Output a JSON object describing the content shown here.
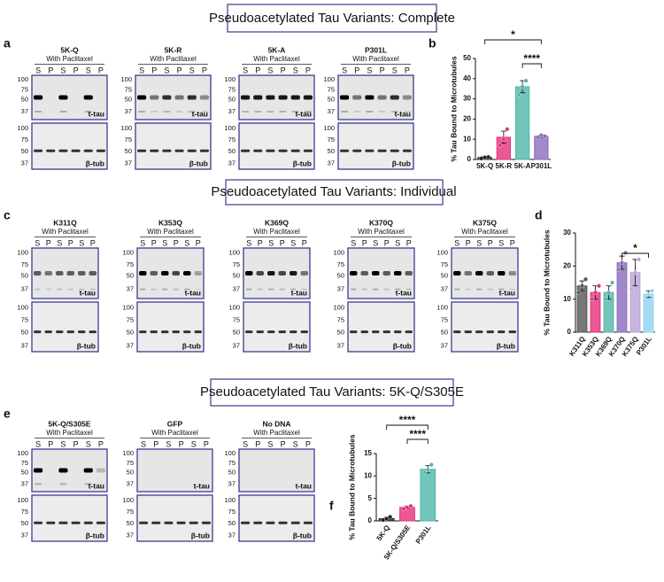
{
  "sections": [
    "Pseudoacetylated Tau Variants: Complete",
    "Pseudoacetylated Tau Variants: Individual",
    "Pseudoacetylated Tau Variants: 5K-Q/S305E"
  ],
  "panels": [
    "a",
    "b",
    "c",
    "d",
    "e",
    "f"
  ],
  "blots": [
    {
      "title": "5K-Q",
      "subtitle": "With Paclitaxel",
      "lanes": [
        "S",
        "P",
        "S",
        "P",
        "S",
        "P"
      ],
      "markers_top": [
        100,
        75,
        50,
        37
      ],
      "markers_bottom": [
        100,
        75,
        50,
        37
      ],
      "label_top": "t-tau",
      "label_bottom": "β-tub"
    },
    {
      "title": "5K-R",
      "subtitle": "With Paclitaxel",
      "lanes": [
        "S",
        "P",
        "S",
        "P",
        "S",
        "P"
      ],
      "markers_top": [
        100,
        75,
        50,
        37
      ],
      "markers_bottom": [
        100,
        75,
        50,
        37
      ],
      "label_top": "t-tau",
      "label_bottom": "β-tub"
    },
    {
      "title": "5K-A",
      "subtitle": "With Paclitaxel",
      "lanes": [
        "S",
        "P",
        "S",
        "P",
        "S",
        "P"
      ],
      "markers_top": [
        100,
        75,
        50,
        37
      ],
      "markers_bottom": [
        100,
        75,
        50,
        37
      ],
      "label_top": "t-tau",
      "label_bottom": "β-tub"
    },
    {
      "title": "P301L",
      "subtitle": "With Paclitaxel",
      "lanes": [
        "S",
        "P",
        "S",
        "P",
        "S",
        "P"
      ],
      "markers_top": [
        100,
        75,
        50,
        37
      ],
      "markers_bottom": [
        100,
        75,
        50,
        37
      ],
      "label_top": "t-tau",
      "label_bottom": "β-tub"
    },
    {
      "title": "K311Q",
      "subtitle": "With Paclitaxel",
      "lanes": [
        "S",
        "P",
        "S",
        "P",
        "S",
        "P"
      ],
      "markers_top": [
        100,
        75,
        50,
        37
      ],
      "markers_bottom": [
        100,
        75,
        50,
        37
      ],
      "label_top": "t-tau",
      "label_bottom": "β-tub"
    },
    {
      "title": "K353Q",
      "subtitle": "With Paclitaxel",
      "lanes": [
        "S",
        "P",
        "S",
        "P",
        "S",
        "P"
      ],
      "markers_top": [
        100,
        75,
        50,
        37
      ],
      "markers_bottom": [
        100,
        75,
        50,
        37
      ],
      "label_top": "t-tau",
      "label_bottom": "β-tub"
    },
    {
      "title": "K369Q",
      "subtitle": "With Paclitaxel",
      "lanes": [
        "S",
        "P",
        "S",
        "P",
        "S",
        "P"
      ],
      "markers_top": [
        100,
        75,
        50,
        37
      ],
      "markers_bottom": [
        100,
        75,
        50,
        37
      ],
      "label_top": "t-tau",
      "label_bottom": "β-tub"
    },
    {
      "title": "K370Q",
      "subtitle": "With Paclitaxel",
      "lanes": [
        "S",
        "P",
        "S",
        "P",
        "S",
        "P"
      ],
      "markers_top": [
        100,
        75,
        50,
        37
      ],
      "markers_bottom": [
        100,
        75,
        50,
        37
      ],
      "label_top": "t-tau",
      "label_bottom": "β-tub"
    },
    {
      "title": "K375Q",
      "subtitle": "With Paclitaxel",
      "lanes": [
        "S",
        "P",
        "S",
        "P",
        "S",
        "P"
      ],
      "markers_top": [
        100,
        75,
        50,
        37
      ],
      "markers_bottom": [
        100,
        75,
        50,
        37
      ],
      "label_top": "t-tau",
      "label_bottom": "β-tub"
    },
    {
      "title": "5K-Q/S305E",
      "subtitle": "With Paclitaxel",
      "lanes": [
        "S",
        "P",
        "S",
        "P",
        "S",
        "P"
      ],
      "markers_top": [
        100,
        75,
        50,
        37
      ],
      "markers_bottom": [
        100,
        75,
        50,
        37
      ],
      "label_top": "t-tau",
      "label_bottom": "β-tub"
    },
    {
      "title": "GFP",
      "subtitle": "With Paclitaxel",
      "lanes": [
        "S",
        "P",
        "S",
        "P",
        "S",
        "P"
      ],
      "markers_top": [
        100,
        75,
        50,
        37
      ],
      "markers_bottom": [
        100,
        75,
        50,
        37
      ],
      "label_top": "t-tau",
      "label_bottom": "β-tub"
    },
    {
      "title": "No DNA",
      "subtitle": "With Paclitaxel",
      "lanes": [
        "S",
        "P",
        "S",
        "P",
        "S",
        "P"
      ],
      "markers_top": [
        100,
        75,
        50,
        37
      ],
      "markers_bottom": [
        100,
        75,
        50,
        37
      ],
      "label_top": "t-tau",
      "label_bottom": "β-tub"
    }
  ],
  "chart_data": [
    {
      "type": "bar",
      "y_label": "% Tau Bound to Microtubules",
      "categories": [
        "5K-Q",
        "5K-R",
        "5K-A",
        "P301L"
      ],
      "values": [
        1,
        11,
        36,
        11.5
      ],
      "errors": [
        0.5,
        3,
        3,
        0.5
      ],
      "points": [
        [
          0.5,
          1,
          1.2
        ],
        [
          7,
          10,
          15
        ],
        [
          32,
          36,
          39
        ],
        [
          11,
          12,
          11.5
        ]
      ],
      "colors": [
        "#222222",
        "#e5307a",
        "#4fb7a8",
        "#8a6bbd"
      ],
      "ylim": [
        0,
        50
      ],
      "yticks": [
        0,
        10,
        20,
        30,
        40,
        50
      ],
      "annotations": [
        {
          "label": "*",
          "from": "5K-Q",
          "to": "P301L"
        },
        {
          "label": "****",
          "from": "5K-A",
          "to": "P301L"
        }
      ]
    },
    {
      "type": "bar",
      "y_label": "% Tau Bound to Microtubules",
      "categories": [
        "K311Q",
        "K353Q",
        "K369Q",
        "K370Q",
        "K375Q",
        "P301L"
      ],
      "values": [
        14,
        12,
        12,
        21,
        18,
        11.5
      ],
      "errors": [
        1.5,
        2,
        2,
        2,
        4,
        1
      ],
      "points": [
        [
          12,
          14,
          16
        ],
        [
          10,
          12,
          14
        ],
        [
          10,
          12,
          15
        ],
        [
          19,
          21,
          24
        ],
        [
          13,
          18,
          22
        ],
        [
          11,
          11.5,
          12.5
        ]
      ],
      "colors": [
        "#555555",
        "#e5307a",
        "#4fb7a8",
        "#8a6bbd",
        "#b9a3d6",
        "#8fd3f0"
      ],
      "ylim": [
        0,
        30
      ],
      "yticks": [
        0,
        10,
        20,
        30
      ],
      "annotations": [
        {
          "label": "*",
          "from": "K370Q",
          "to": "P301L"
        }
      ]
    },
    {
      "type": "bar",
      "y_label": "% Tau Bound to Microtubules",
      "categories": [
        "5K-Q",
        "5K-Q/S305E",
        "P301L"
      ],
      "values": [
        0.5,
        3,
        11.5
      ],
      "errors": [
        0.3,
        0.3,
        0.8
      ],
      "points": [
        [
          0.2,
          0.5,
          0.9
        ],
        [
          2.7,
          3,
          3.3
        ],
        [
          10.8,
          11.4,
          12.5
        ]
      ],
      "colors": [
        "#222222",
        "#e5307a",
        "#4fb7a8"
      ],
      "ylim": [
        0,
        15
      ],
      "yticks": [
        0,
        5,
        10,
        15
      ],
      "annotations": [
        {
          "label": "****",
          "from": "5K-Q",
          "to": "P301L"
        },
        {
          "label": "****",
          "from": "5K-Q/S305E",
          "to": "P301L"
        }
      ]
    }
  ]
}
